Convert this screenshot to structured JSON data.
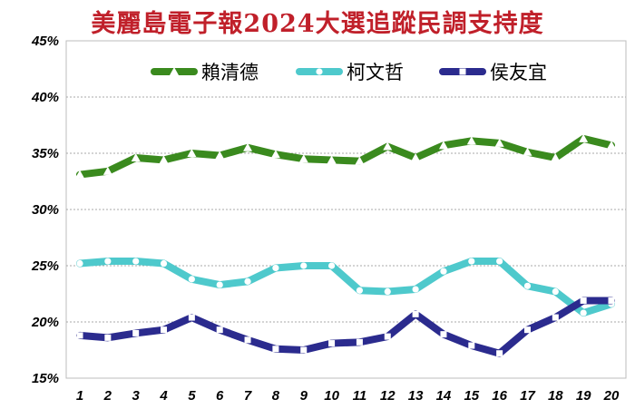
{
  "chart_data": {
    "type": "line",
    "title": "美麗島電子報2024大選追蹤民調支持度",
    "xlabel": "",
    "ylabel": "",
    "x": [
      1,
      2,
      3,
      4,
      5,
      6,
      7,
      8,
      9,
      10,
      11,
      12,
      13,
      14,
      15,
      16,
      17,
      18,
      19,
      20
    ],
    "ylim": [
      15,
      45
    ],
    "yticks": [
      "15%",
      "20%",
      "25%",
      "30%",
      "35%",
      "40%",
      "45%"
    ],
    "ytick_values": [
      15,
      20,
      25,
      30,
      35,
      40,
      45
    ],
    "grid": true,
    "legend_position": "top",
    "series": [
      {
        "name": "賴清德",
        "color": "#3a8a1e",
        "marker": "triangle",
        "values": [
          33.1,
          33.4,
          34.6,
          34.4,
          35.0,
          34.8,
          35.5,
          34.9,
          34.5,
          34.4,
          34.3,
          35.6,
          34.6,
          35.7,
          36.1,
          35.9,
          35.1,
          34.6,
          36.3,
          35.7
        ]
      },
      {
        "name": "柯文哲",
        "color": "#4ec9cc",
        "marker": "circle",
        "values": [
          25.2,
          25.4,
          25.4,
          25.2,
          23.8,
          23.3,
          23.6,
          24.8,
          25.0,
          25.0,
          22.8,
          22.7,
          22.9,
          24.5,
          25.4,
          25.4,
          23.2,
          22.7,
          20.8,
          21.6
        ]
      },
      {
        "name": "侯友宜",
        "color": "#2b2b8e",
        "marker": "square",
        "values": [
          18.8,
          18.6,
          19.0,
          19.3,
          20.4,
          19.3,
          18.4,
          17.6,
          17.5,
          18.1,
          18.2,
          18.7,
          20.7,
          18.9,
          17.9,
          17.2,
          19.3,
          20.4,
          21.9,
          21.9
        ]
      }
    ]
  }
}
